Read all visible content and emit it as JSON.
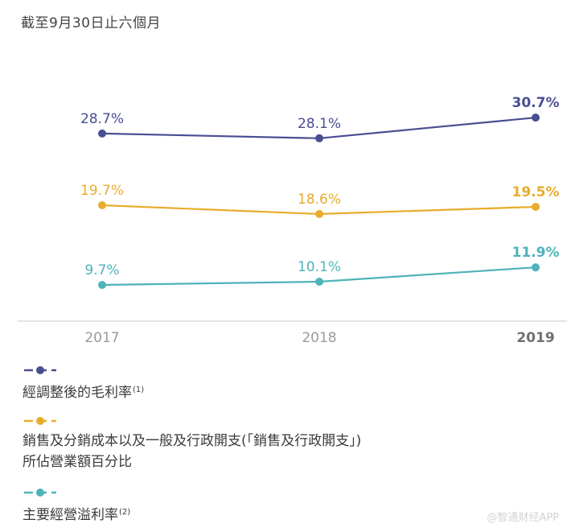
{
  "title": "截至9月30日止六個月",
  "chart_data": {
    "type": "line",
    "x": [
      "2017",
      "2018",
      "2019"
    ],
    "highlight_category": "2019",
    "ylim": [
      0,
      35
    ],
    "series": [
      {
        "name": "經調整後的毛利率",
        "footnote": "(1)",
        "color": "#4a4e92",
        "values": [
          28.7,
          28.1,
          30.7
        ],
        "labels": [
          "28.7%",
          "28.1%",
          "30.7%"
        ]
      },
      {
        "name": "銷售及分銷成本以及一般及行政開支(「銷售及行政開支」)所佔營業額百分比",
        "color": "#e8ac2b",
        "label_lines": [
          "銷售及分銷成本以及一般及行政開支(「銷售及行政開支」)",
          "所佔營業額百分比"
        ],
        "values": [
          19.7,
          18.6,
          19.5
        ],
        "labels": [
          "19.7%",
          "18.6%",
          "19.5%"
        ]
      },
      {
        "name": "主要經營溢利率",
        "footnote": "(2)",
        "color": "#4eb3ba",
        "values": [
          9.7,
          10.1,
          11.9
        ],
        "labels": [
          "9.7%",
          "10.1%",
          "11.9%"
        ]
      }
    ]
  },
  "watermark": "@智通财经APP"
}
